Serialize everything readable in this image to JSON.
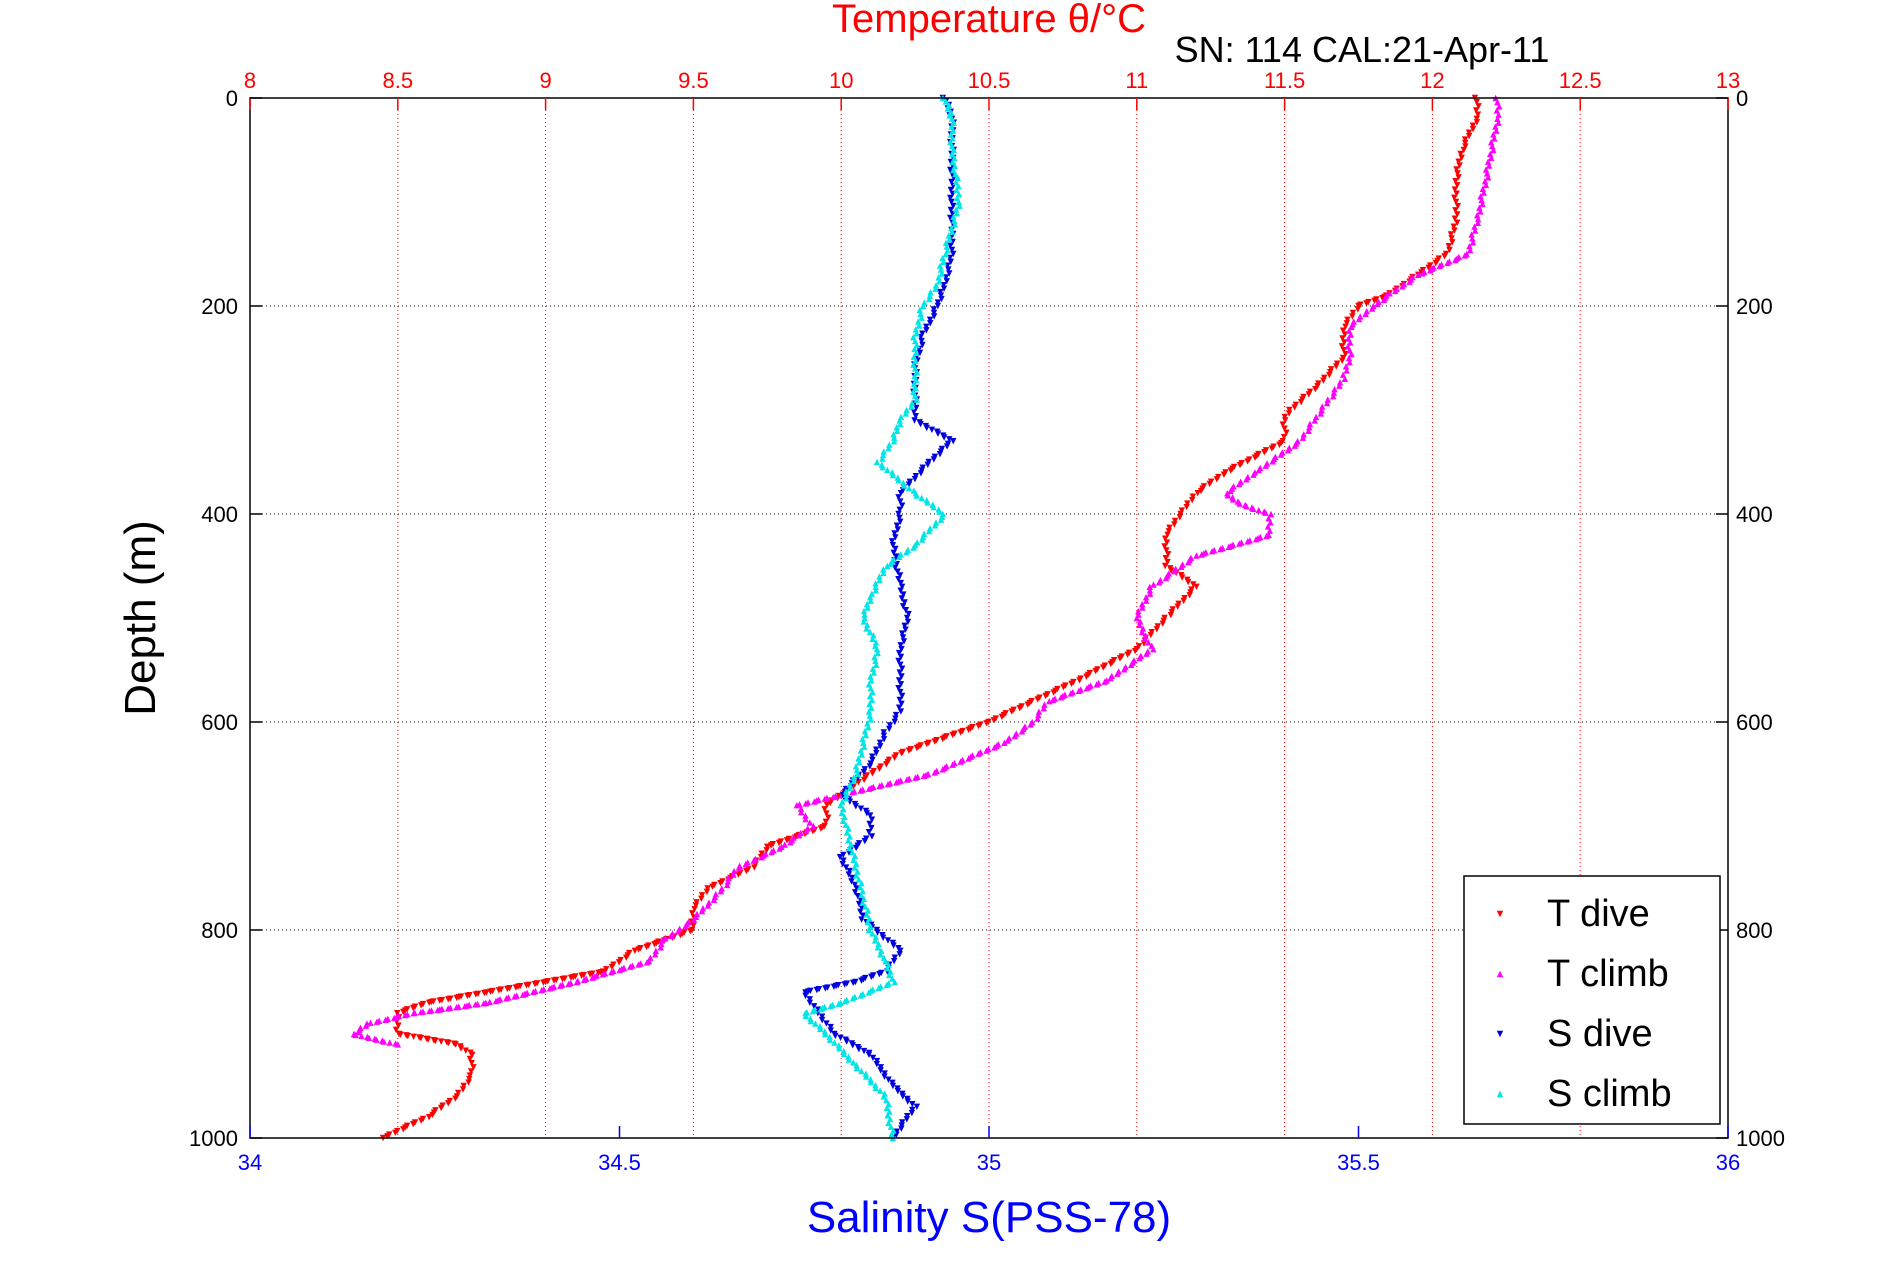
{
  "chart_data": {
    "type": "scatter",
    "title": "Temperature θ/°C",
    "subtitle": "SN: 114  CAL:21-Apr-11",
    "xlabel": "Salinity S(PSS-78)",
    "ylabel": "Depth (m)",
    "colors": {
      "temperature_axis": "#ff0000",
      "salinity_axis": "#0000ff",
      "T_dive": "#ff0000",
      "T_climb": "#ff00ff",
      "S_dive": "#0000dd",
      "S_climb": "#00e5e5"
    },
    "grid": true,
    "legend_position": "bottom-right",
    "x_top": {
      "label": "Temperature θ/°C",
      "lim": [
        8,
        13
      ],
      "ticks": [
        "8",
        "8.5",
        "9",
        "9.5",
        "10",
        "10.5",
        "11",
        "11.5",
        "12",
        "12.5",
        "13"
      ]
    },
    "x_bottom": {
      "label": "Salinity S(PSS-78)",
      "lim": [
        34,
        36
      ],
      "ticks": [
        "34",
        "34.5",
        "35",
        "35.5",
        "36"
      ]
    },
    "y": {
      "label": "Depth (m)",
      "lim": [
        0,
        1000
      ],
      "reversed": true,
      "ticks": [
        "0",
        "200",
        "400",
        "600",
        "800",
        "1000"
      ]
    },
    "legend": [
      "T dive",
      "T climb",
      "S dive",
      "S climb"
    ],
    "series": [
      {
        "name": "T dive",
        "axis": "temperature",
        "marker": "triangle-down",
        "depth": [
          0,
          20,
          50,
          80,
          120,
          150,
          170,
          190,
          200,
          220,
          250,
          280,
          300,
          310,
          330,
          360,
          380,
          400,
          420,
          450,
          470,
          500,
          530,
          560,
          600,
          630,
          660,
          680,
          700,
          720,
          740,
          760,
          780,
          800,
          820,
          840,
          860,
          870,
          880,
          900,
          910,
          920,
          940,
          960,
          980,
          1000
        ],
        "values": [
          12.15,
          12.15,
          12.1,
          12.08,
          12.08,
          12.05,
          11.95,
          11.85,
          11.75,
          11.7,
          11.7,
          11.6,
          11.52,
          11.5,
          11.5,
          11.3,
          11.2,
          11.15,
          11.1,
          11.1,
          11.2,
          11.1,
          11.0,
          10.8,
          10.5,
          10.2,
          10.05,
          9.95,
          9.95,
          9.75,
          9.7,
          9.55,
          9.5,
          9.5,
          9.3,
          9.2,
          8.8,
          8.6,
          8.5,
          8.5,
          8.7,
          8.75,
          8.75,
          8.7,
          8.6,
          8.45
        ]
      },
      {
        "name": "T climb",
        "axis": "temperature",
        "marker": "triangle-up",
        "depth": [
          0,
          20,
          50,
          80,
          120,
          150,
          170,
          190,
          200,
          220,
          250,
          270,
          290,
          310,
          330,
          360,
          380,
          390,
          400,
          420,
          440,
          470,
          500,
          530,
          560,
          580,
          600,
          620,
          650,
          680,
          700,
          720,
          740,
          760,
          790,
          810,
          830,
          850,
          870,
          880,
          890,
          900,
          910
        ],
        "values": [
          12.22,
          12.22,
          12.2,
          12.18,
          12.15,
          12.12,
          11.95,
          11.85,
          11.8,
          11.72,
          11.72,
          11.7,
          11.65,
          11.6,
          11.55,
          11.4,
          11.3,
          11.35,
          11.45,
          11.45,
          11.2,
          11.05,
          11.0,
          11.05,
          10.9,
          10.7,
          10.65,
          10.55,
          10.3,
          9.85,
          9.9,
          9.8,
          9.65,
          9.6,
          9.5,
          9.4,
          9.35,
          9.1,
          8.8,
          8.55,
          8.4,
          8.35,
          8.5
        ]
      },
      {
        "name": "S dive",
        "axis": "salinity",
        "marker": "triangle-down",
        "depth": [
          0,
          20,
          50,
          100,
          150,
          180,
          200,
          230,
          260,
          290,
          310,
          330,
          350,
          380,
          400,
          430,
          470,
          500,
          530,
          560,
          590,
          610,
          640,
          670,
          690,
          710,
          730,
          760,
          790,
          820,
          840,
          850,
          860,
          880,
          900,
          920,
          950,
          970,
          1000
        ],
        "values": [
          34.94,
          34.95,
          34.95,
          34.95,
          34.95,
          34.94,
          34.93,
          34.91,
          34.9,
          34.9,
          34.9,
          34.95,
          34.92,
          34.88,
          34.88,
          34.87,
          34.88,
          34.89,
          34.88,
          34.88,
          34.88,
          34.86,
          34.84,
          34.8,
          34.84,
          34.84,
          34.8,
          34.82,
          34.83,
          34.88,
          34.86,
          34.82,
          34.75,
          34.77,
          34.79,
          34.84,
          34.87,
          34.9,
          34.87
        ]
      },
      {
        "name": "S climb",
        "axis": "salinity",
        "marker": "triangle-up",
        "depth": [
          0,
          20,
          50,
          100,
          150,
          180,
          200,
          230,
          260,
          290,
          310,
          330,
          350,
          380,
          400,
          430,
          450,
          480,
          500,
          530,
          560,
          590,
          620,
          650,
          680,
          710,
          740,
          770,
          800,
          830,
          850,
          870,
          880,
          900,
          930,
          960,
          1000
        ],
        "values": [
          34.94,
          34.95,
          34.95,
          34.96,
          34.94,
          34.93,
          34.91,
          34.9,
          34.9,
          34.9,
          34.88,
          34.87,
          34.85,
          34.9,
          34.94,
          34.9,
          34.86,
          34.84,
          34.83,
          34.85,
          34.84,
          34.84,
          34.83,
          34.82,
          34.8,
          34.81,
          34.82,
          34.83,
          34.84,
          34.86,
          34.87,
          34.8,
          34.75,
          34.78,
          34.82,
          34.86,
          34.87
        ]
      }
    ]
  }
}
